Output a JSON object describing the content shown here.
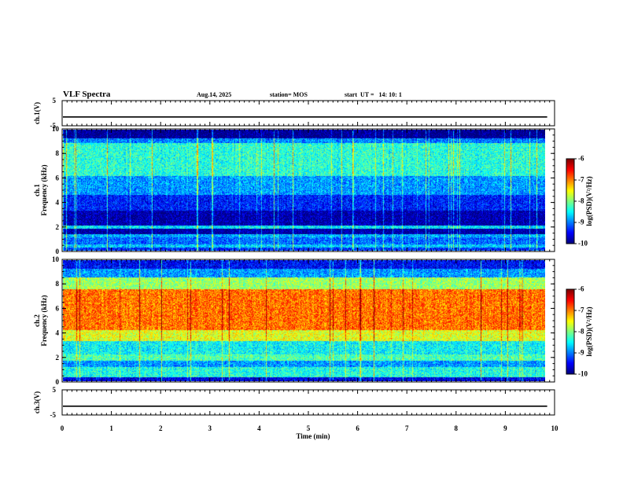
{
  "header": {
    "title": "VLF Spectra",
    "date": "Aug.14, 2025",
    "station": "station= MOS",
    "start": "start  UT =   14: 10: 1"
  },
  "chart_data": [
    {
      "type": "line",
      "id": "ch1-voltage",
      "ylabel": "ch.1(V)",
      "ylim": [
        -5,
        5
      ],
      "y_tick_labels": [
        "5",
        "-5"
      ],
      "baseline_value": -1.5
    },
    {
      "type": "heatmap",
      "id": "ch1-spectrogram",
      "ylabel_line1": "ch.1",
      "ylabel_line2": "Frequency (kHz)",
      "ylim": [
        0,
        10
      ],
      "y_tick_labels": [
        "0",
        "2",
        "4",
        "6",
        "8",
        "10"
      ],
      "colorbar": {
        "label": "log(PSD)(V²/Hz)",
        "range": [
          -10,
          -6
        ],
        "tick_labels": [
          "-6",
          "-7",
          "-8",
          "-9",
          "-10"
        ]
      },
      "bands": [
        {
          "fmin": 0.0,
          "fmax": 0.25,
          "level": -9.3
        },
        {
          "fmin": 0.25,
          "fmax": 0.55,
          "level": -8.7
        },
        {
          "fmin": 0.55,
          "fmax": 1.1,
          "level": -9.1
        },
        {
          "fmin": 1.1,
          "fmax": 1.35,
          "level": -8.8
        },
        {
          "fmin": 1.35,
          "fmax": 1.85,
          "level": -9.9
        },
        {
          "fmin": 1.85,
          "fmax": 2.1,
          "level": -8.6
        },
        {
          "fmin": 2.1,
          "fmax": 3.3,
          "level": -9.85
        },
        {
          "fmin": 3.3,
          "fmax": 4.6,
          "level": -9.4
        },
        {
          "fmin": 4.6,
          "fmax": 6.2,
          "level": -8.9
        },
        {
          "fmin": 6.2,
          "fmax": 8.9,
          "level": -8.35
        },
        {
          "fmin": 8.9,
          "fmax": 9.3,
          "level": -9.0
        },
        {
          "fmin": 9.3,
          "fmax": 10.0,
          "level": -10.0
        }
      ]
    },
    {
      "type": "heatmap",
      "id": "ch2-spectrogram",
      "ylabel_line1": "ch.2",
      "ylabel_line2": "Frequency (kHz)",
      "ylim": [
        0,
        10
      ],
      "y_tick_labels": [
        "0",
        "2",
        "4",
        "6",
        "8",
        "10"
      ],
      "colorbar": {
        "label": "log(PSD)(V²/Hz)",
        "range": [
          -10,
          -6
        ],
        "tick_labels": [
          "-6",
          "-7",
          "-8",
          "-9",
          "-10"
        ]
      },
      "bands": [
        {
          "fmin": 0.0,
          "fmax": 0.3,
          "level": -9.6
        },
        {
          "fmin": 0.3,
          "fmax": 1.2,
          "level": -8.4
        },
        {
          "fmin": 1.2,
          "fmax": 1.7,
          "level": -8.9
        },
        {
          "fmin": 1.7,
          "fmax": 2.2,
          "level": -8.2
        },
        {
          "fmin": 2.2,
          "fmax": 3.3,
          "level": -8.5
        },
        {
          "fmin": 3.3,
          "fmax": 4.2,
          "level": -7.6
        },
        {
          "fmin": 4.2,
          "fmax": 7.6,
          "level": -6.95
        },
        {
          "fmin": 7.6,
          "fmax": 8.6,
          "level": -7.9
        },
        {
          "fmin": 8.6,
          "fmax": 9.3,
          "level": -8.9
        },
        {
          "fmin": 9.3,
          "fmax": 10.0,
          "level": -9.5
        }
      ]
    },
    {
      "type": "line",
      "id": "ch3-voltage",
      "ylabel": "ch.3(V)",
      "ylim": [
        -5,
        5
      ],
      "y_tick_labels": [
        "5",
        "-5"
      ],
      "baseline_value": -1.5
    }
  ],
  "x_axis": {
    "label": "Time (min)",
    "range": [
      0,
      10
    ],
    "data_extent_max": 9.85,
    "tick_labels": [
      "0",
      "1",
      "2",
      "3",
      "4",
      "5",
      "6",
      "7",
      "8",
      "9",
      "10"
    ]
  }
}
